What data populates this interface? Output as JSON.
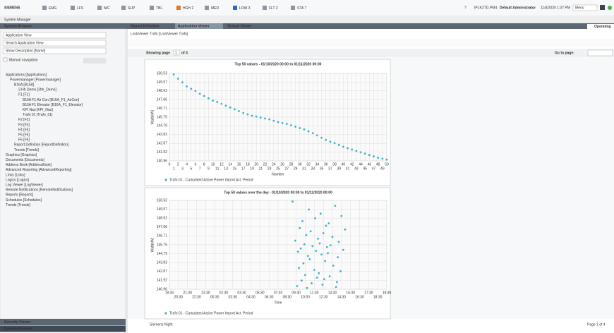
{
  "header": {
    "logo": "SIEMENS",
    "menu": [
      "EMG",
      "LFS",
      "NIC",
      "SUP",
      "TBL",
      "HGH 2",
      "MED",
      "LOW 3",
      "FLT 2",
      "STA 7"
    ],
    "help": "?",
    "host": "IPLK2TD-PM4",
    "user": "Default Administrator",
    "datetime": "11/4/2020 1:37 PM",
    "menu_button": "Menu",
    "app_title": "System Manager"
  },
  "tabs": {
    "browser": "System Browser",
    "items": [
      "Report Definition",
      "Application Viewer",
      "Textual Viewer"
    ],
    "mode": "Operating"
  },
  "sidebar": {
    "view": "Application View",
    "search": "Search Application View",
    "description": "Show Description [Name]",
    "manual": "Manual navigation",
    "tree": [
      "Applications [Applications]",
      "Powermanager [Powermanager]",
      "B16A [B16A]",
      "3 Hh Demo [3hh_Demo]",
      "F1 [F1]",
      "B16A F1 Air Con [B16A_F1_AirCon]",
      "B16A F1 Elevator [B16A_F1_Elevator]",
      "KPI Nau [KPI_Nau]",
      "Trafo 01 [Trafo_01]",
      "F2 [F2]",
      "F3 [F3]",
      "F4 [F4]",
      "F5 [F5]",
      "F6 [F6]",
      "Report Definition [ReportDefinition]",
      "Trends [Trends]",
      "Graphics [Graphics]",
      "Documents [Documents]",
      "Address Book [AddressBook]",
      "Advanced Reporting [AdvancedReporting]",
      "Links [Links]",
      "Logics [Logics]",
      "Log Viewer [LogViewer]",
      "Remote Notifications [RemoteNotifications]",
      "Reports [Reports]",
      "Schedules [Schedules]",
      "Trends [Trends]"
    ],
    "bottom": [
      "Security Viewer",
      "System Browser"
    ]
  },
  "viewer": {
    "breadcrumb": "LockViewer Trafo [LockViewer Trafo]",
    "showing": "Showing page",
    "page": "1",
    "of": "of 4",
    "goto": "Go to page:",
    "footer_left": "Siemens Night",
    "footer_right": "Page 1 of 4"
  },
  "chart_data": [
    {
      "type": "scatter",
      "title": "Top 50 values - 01/10/2020 00:00 to 01/11/2020 00:00",
      "x_label": "Number",
      "y_label": "Watt(kW)",
      "grid": true,
      "x": [
        1,
        2,
        3,
        4,
        5,
        6,
        7,
        8,
        9,
        10,
        11,
        12,
        13,
        14,
        15,
        16,
        17,
        18,
        19,
        20,
        21,
        22,
        23,
        24,
        25,
        26,
        27,
        28,
        29,
        30,
        31,
        32,
        33,
        34,
        35,
        36,
        37,
        38,
        39,
        40,
        41,
        42,
        43,
        44,
        45,
        46,
        47,
        48,
        49,
        50
      ],
      "series": [
        {
          "name": "Trafo 01 - Cumulated Active Power Import Act. Period",
          "color": "#3ab3cc",
          "values": [
            150.4,
            149.95,
            149.55,
            149.1,
            148.85,
            148.6,
            148.3,
            148.05,
            147.8,
            147.55,
            147.4,
            147.2,
            147.0,
            146.8,
            146.6,
            146.4,
            146.2,
            146.05,
            145.9,
            145.8,
            145.7,
            145.6,
            145.5,
            145.35,
            145.2,
            145.1,
            145.0,
            144.85,
            144.7,
            144.55,
            144.4,
            144.2,
            144.0,
            143.75,
            143.5,
            143.25,
            143.05,
            142.9,
            142.7,
            142.5,
            142.35,
            142.2,
            142.05,
            141.9,
            141.75,
            141.6,
            141.45,
            141.3,
            141.2,
            141.1
          ]
        }
      ],
      "xlim": [
        0,
        50
      ],
      "xticks": [
        0,
        1,
        2,
        3,
        4,
        5,
        6,
        7,
        8,
        9,
        10,
        11,
        12,
        13,
        14,
        15,
        16,
        17,
        18,
        19,
        20,
        21,
        22,
        23,
        24,
        25,
        26,
        27,
        28,
        29,
        30,
        31,
        32,
        33,
        34,
        35,
        36,
        37,
        38,
        39,
        40,
        41,
        42,
        43,
        44,
        45,
        46,
        47,
        48,
        49,
        50
      ],
      "ylim": [
        140.96,
        150.53
      ],
      "yticks": [
        140.96,
        141.92,
        142.87,
        143.83,
        144.79,
        145.75,
        146.71,
        147.66,
        148.62,
        149.57,
        150.53
      ]
    },
    {
      "type": "scatter",
      "title": "Top 50 values over the day - 01/10/2020 00:00 to 01/11/2020 00:00",
      "x_label": "Time",
      "y_label": "Watt(kW)",
      "grid": true,
      "x": [
        33.1,
        37.8,
        34.9,
        36.2,
        38.5,
        35.6,
        34.2,
        37.1,
        36.8,
        33.9,
        38.9,
        35.1,
        36.5,
        34.6,
        37.5,
        35.9,
        33.4,
        38.2,
        36.1,
        34.4,
        37.3,
        35.3,
        36.9,
        34.0,
        38.7,
        35.7,
        33.7,
        37.0,
        36.3,
        34.8,
        38.1,
        35.0,
        36.7,
        34.3,
        37.6,
        33.8,
        35.5,
        38.4,
        36.0,
        34.5,
        37.2,
        35.8,
        36.6,
        34.1,
        38.0,
        35.2,
        36.4,
        33.6,
        37.9,
        34.7
      ],
      "series": [
        {
          "name": "Trafo 01 - Cumulated Active Power Import Act. Period",
          "color": "#3ab3cc",
          "values": [
            150.4,
            149.95,
            149.55,
            149.1,
            148.85,
            148.6,
            148.3,
            148.05,
            147.8,
            147.55,
            147.4,
            147.2,
            147.0,
            146.8,
            146.6,
            146.4,
            146.2,
            146.05,
            145.9,
            145.8,
            145.7,
            145.6,
            145.5,
            145.35,
            145.2,
            145.1,
            145.0,
            144.85,
            144.7,
            144.55,
            144.4,
            144.2,
            144.0,
            143.75,
            143.5,
            143.25,
            143.05,
            142.9,
            142.7,
            142.5,
            142.35,
            142.2,
            142.05,
            141.9,
            141.75,
            141.6,
            141.45,
            141.3,
            141.2,
            141.1
          ]
        }
      ],
      "xlim": [
        19.5,
        43.5
      ],
      "xticks": [
        {
          "value": 19.5,
          "label": "19:30"
        },
        {
          "value": 20.5,
          "label": "20:30"
        },
        {
          "value": 21.5,
          "label": "21:30"
        },
        {
          "value": 22.5,
          "label": "22:30"
        },
        {
          "value": 23.5,
          "label": "23:30"
        },
        {
          "value": 24.5,
          "label": "00:30"
        },
        {
          "value": 25.5,
          "label": "01:30"
        },
        {
          "value": 26.5,
          "label": "02:30"
        },
        {
          "value": 27.5,
          "label": "03:30"
        },
        {
          "value": 28.5,
          "label": "04:30"
        },
        {
          "value": 29.5,
          "label": "05:30"
        },
        {
          "value": 30.5,
          "label": "06:30"
        },
        {
          "value": 31.5,
          "label": "07:30"
        },
        {
          "value": 32.5,
          "label": "08:30"
        },
        {
          "value": 33.5,
          "label": "09:30"
        },
        {
          "value": 34.5,
          "label": "10:30"
        },
        {
          "value": 35.5,
          "label": "11:30"
        },
        {
          "value": 36.5,
          "label": "12:30"
        },
        {
          "value": 37.5,
          "label": "13:30"
        },
        {
          "value": 38.5,
          "label": "14:30"
        },
        {
          "value": 39.5,
          "label": "15:30"
        },
        {
          "value": 40.5,
          "label": "16:30"
        },
        {
          "value": 41.5,
          "label": "17:30"
        },
        {
          "value": 42.5,
          "label": "18:30"
        },
        {
          "value": 43.5,
          "label": "19:30"
        }
      ],
      "ylim": [
        140.96,
        150.53
      ],
      "yticks": [
        140.96,
        141.92,
        142.87,
        143.83,
        144.79,
        145.75,
        146.71,
        147.66,
        148.62,
        149.57,
        150.53
      ]
    }
  ]
}
